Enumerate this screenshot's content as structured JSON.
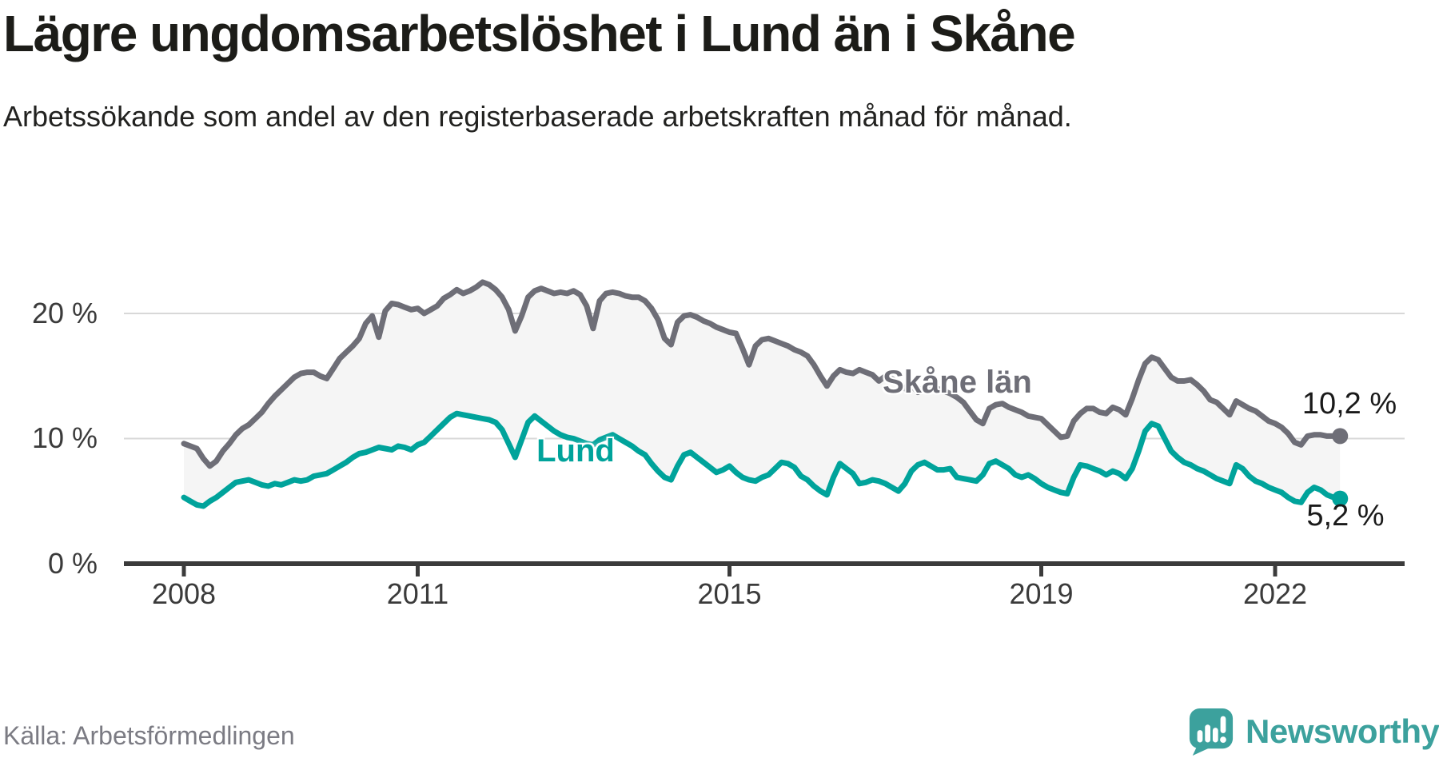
{
  "title": "Lägre ungdomsarbetslöshet i Lund än i Skåne",
  "subtitle": "Arbetssökande som andel av den registerbaserade arbetskraften månad för månad.",
  "source": "Källa: Arbetsförmedlingen",
  "logo": {
    "text": "Newsworthy"
  },
  "colors": {
    "skane": "#6e6e77",
    "lund": "#00a39b",
    "band": "#f5f5f5",
    "grid": "#d8d8d8",
    "axis": "#3b3b3b",
    "title_text": "#1c1c18",
    "source_text": "#7b7b83",
    "logo": "#3ca19d"
  },
  "chart_data": {
    "type": "line",
    "title": "Lägre ungdomsarbetslöshet i Lund än i Skåne",
    "subtitle": "Arbetssökande som andel av den registerbaserade arbetskraften månad för månad.",
    "ylabel": "",
    "xlabel": "",
    "ylim": [
      0,
      24
    ],
    "grid": "horizontal",
    "legend_position": "inline-labels",
    "x_start_year": 2008,
    "points_per_year": 12,
    "x_tick_years": [
      2008,
      2011,
      2015,
      2019,
      2022
    ],
    "x_tick_labels": [
      "2008",
      "2011",
      "2015",
      "2019",
      "2022"
    ],
    "y_ticks": [
      0,
      10,
      20
    ],
    "y_tick_labels": [
      "0 %",
      "10 %",
      "20 %"
    ],
    "series": [
      {
        "name": "Skåne län",
        "color": "#6e6e77",
        "end_label": "10,2 %",
        "end_value": 10.2,
        "values": [
          9.6,
          9.4,
          9.2,
          8.4,
          7.8,
          8.2,
          9.0,
          9.6,
          10.3,
          10.8,
          11.1,
          11.6,
          12.1,
          12.8,
          13.4,
          13.9,
          14.4,
          14.9,
          15.2,
          15.3,
          15.3,
          15.0,
          14.8,
          15.6,
          16.4,
          16.9,
          17.4,
          18.0,
          19.2,
          19.8,
          18.1,
          20.2,
          20.8,
          20.7,
          20.5,
          20.3,
          20.4,
          20.0,
          20.3,
          20.6,
          21.2,
          21.5,
          21.9,
          21.6,
          21.8,
          22.1,
          22.5,
          22.3,
          21.9,
          21.3,
          20.3,
          18.6,
          19.8,
          21.3,
          21.8,
          22.0,
          21.8,
          21.6,
          21.7,
          21.6,
          21.8,
          21.5,
          20.6,
          18.8,
          21.0,
          21.6,
          21.7,
          21.6,
          21.4,
          21.3,
          21.3,
          21.0,
          20.4,
          19.5,
          18.0,
          17.5,
          19.3,
          19.8,
          19.9,
          19.7,
          19.4,
          19.2,
          18.9,
          18.7,
          18.5,
          18.4,
          17.2,
          15.9,
          17.4,
          17.9,
          18.0,
          17.8,
          17.6,
          17.4,
          17.1,
          16.9,
          16.6,
          15.9,
          15.0,
          14.2,
          15.0,
          15.5,
          15.3,
          15.2,
          15.5,
          15.3,
          15.1,
          14.6,
          15.0,
          14.8,
          14.4,
          14.0,
          14.3,
          13.7,
          14.1,
          14.3,
          14.0,
          13.8,
          13.6,
          13.3,
          12.9,
          12.2,
          11.5,
          11.2,
          12.4,
          12.7,
          12.8,
          12.5,
          12.3,
          12.1,
          11.8,
          11.7,
          11.6,
          11.1,
          10.6,
          10.1,
          10.2,
          11.4,
          12.0,
          12.4,
          12.4,
          12.1,
          12.0,
          12.5,
          12.3,
          11.9,
          13.2,
          14.7,
          16.0,
          16.5,
          16.3,
          15.6,
          14.9,
          14.6,
          14.6,
          14.7,
          14.3,
          13.8,
          13.1,
          12.9,
          12.4,
          11.9,
          13.0,
          12.7,
          12.4,
          12.2,
          11.8,
          11.4,
          11.2,
          10.9,
          10.4,
          9.7,
          9.5,
          10.2,
          10.3,
          10.3,
          10.2,
          10.2,
          10.2
        ]
      },
      {
        "name": "Lund",
        "color": "#00a39b",
        "end_label": "5,2 %",
        "end_value": 5.2,
        "values": [
          5.3,
          5.0,
          4.7,
          4.6,
          5.0,
          5.3,
          5.7,
          6.1,
          6.5,
          6.6,
          6.7,
          6.5,
          6.3,
          6.2,
          6.4,
          6.3,
          6.5,
          6.7,
          6.6,
          6.7,
          7.0,
          7.1,
          7.2,
          7.5,
          7.8,
          8.1,
          8.5,
          8.8,
          8.9,
          9.1,
          9.3,
          9.2,
          9.1,
          9.4,
          9.3,
          9.1,
          9.5,
          9.7,
          10.2,
          10.7,
          11.2,
          11.7,
          12.0,
          11.9,
          11.8,
          11.7,
          11.6,
          11.5,
          11.3,
          10.7,
          9.6,
          8.5,
          9.9,
          11.3,
          11.8,
          11.4,
          11.0,
          10.6,
          10.3,
          10.1,
          10.0,
          9.8,
          9.6,
          9.5,
          9.9,
          10.1,
          10.3,
          10.0,
          9.7,
          9.4,
          9.0,
          8.7,
          8.0,
          7.4,
          6.9,
          6.7,
          7.8,
          8.7,
          8.9,
          8.5,
          8.1,
          7.7,
          7.3,
          7.5,
          7.8,
          7.3,
          6.9,
          6.7,
          6.6,
          6.9,
          7.1,
          7.6,
          8.1,
          8.0,
          7.7,
          7.0,
          6.7,
          6.2,
          5.8,
          5.5,
          6.9,
          8.0,
          7.6,
          7.2,
          6.4,
          6.5,
          6.7,
          6.6,
          6.4,
          6.1,
          5.8,
          6.4,
          7.4,
          7.9,
          8.1,
          7.8,
          7.5,
          7.5,
          7.6,
          6.9,
          6.8,
          6.7,
          6.6,
          7.1,
          8.0,
          8.2,
          7.9,
          7.6,
          7.1,
          6.9,
          7.1,
          6.8,
          6.4,
          6.1,
          5.9,
          5.7,
          5.6,
          6.9,
          7.9,
          7.8,
          7.6,
          7.4,
          7.1,
          7.4,
          7.2,
          6.8,
          7.6,
          9.0,
          10.6,
          11.2,
          11.0,
          10.0,
          9.0,
          8.5,
          8.1,
          7.9,
          7.6,
          7.4,
          7.1,
          6.8,
          6.6,
          6.4,
          7.9,
          7.6,
          7.0,
          6.6,
          6.4,
          6.1,
          5.9,
          5.7,
          5.3,
          5.0,
          4.9,
          5.7,
          6.1,
          5.9,
          5.5,
          5.3,
          5.2
        ]
      }
    ]
  }
}
